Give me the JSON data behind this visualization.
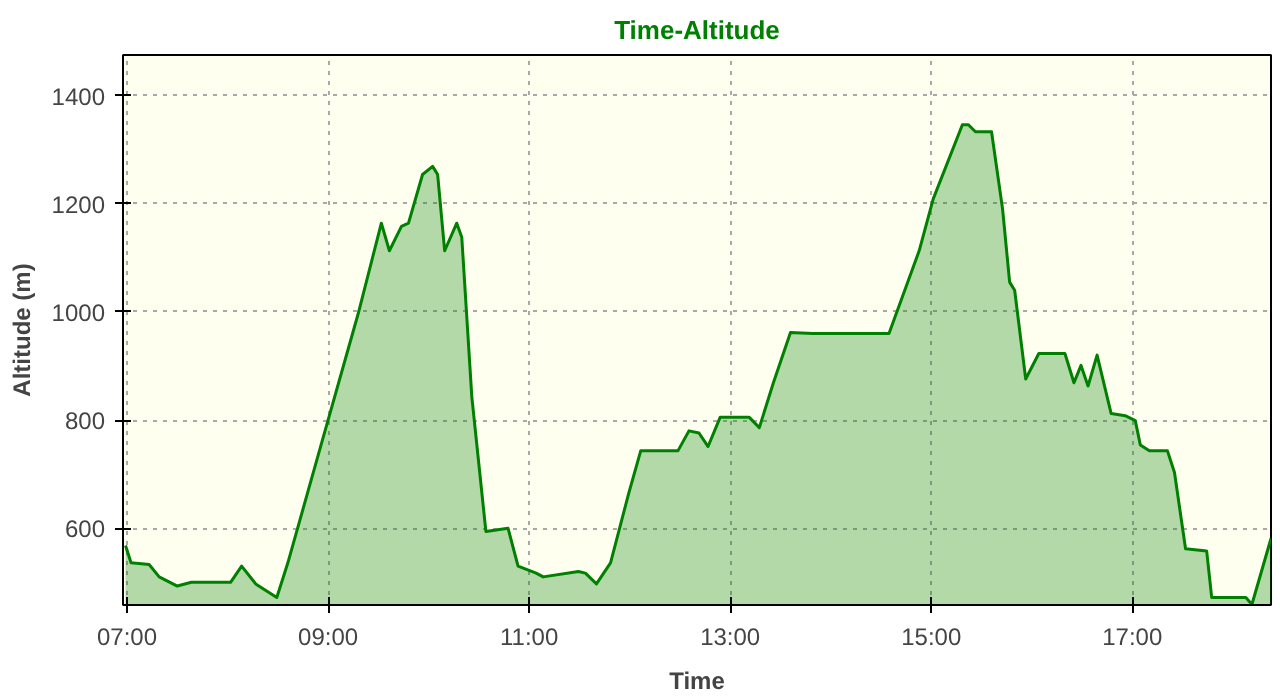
{
  "chart_data": {
    "type": "area",
    "title": "Time-Altitude",
    "xlabel": "Time",
    "ylabel": "Altitude (m)",
    "xlim": [
      6.96,
      18.38
    ],
    "ylim": [
      458,
      1475
    ],
    "xticks": [
      {
        "value": 7,
        "label": "07:00"
      },
      {
        "value": 9,
        "label": "09:00"
      },
      {
        "value": 11,
        "label": "11:00"
      },
      {
        "value": 13,
        "label": "13:00"
      },
      {
        "value": 15,
        "label": "15:00"
      },
      {
        "value": 17,
        "label": "17:00"
      }
    ],
    "yticks": [
      600,
      800,
      1000,
      1200,
      1400
    ],
    "grid": true,
    "series": [
      {
        "color": "#008000",
        "x": [
          6.985,
          7.04,
          7.22,
          7.32,
          7.5,
          7.64,
          8.03,
          8.14,
          8.28,
          8.49,
          8.6,
          8.95,
          9.3,
          9.53,
          9.61,
          9.73,
          9.8,
          9.94,
          10.04,
          10.09,
          10.16,
          10.28,
          10.33,
          10.43,
          10.57,
          10.79,
          10.89,
          11.07,
          11.14,
          11.49,
          11.56,
          11.67,
          11.81,
          11.99,
          12.11,
          12.48,
          12.59,
          12.69,
          12.78,
          12.9,
          13.19,
          13.29,
          13.43,
          13.6,
          13.82,
          14.58,
          14.88,
          15.02,
          15.31,
          15.37,
          15.44,
          15.6,
          15.71,
          15.78,
          15.83,
          15.94,
          16.07,
          16.33,
          16.42,
          16.49,
          16.56,
          16.65,
          16.79,
          16.93,
          17.03,
          17.08,
          17.17,
          17.35,
          17.42,
          17.53,
          17.74,
          17.79,
          18.13,
          18.19,
          18.38
        ],
        "values": [
          568,
          536,
          533,
          510,
          493,
          500,
          500,
          530,
          497,
          472,
          536,
          767,
          997,
          1164,
          1113,
          1158,
          1164,
          1254,
          1269,
          1254,
          1113,
          1164,
          1138,
          843,
          594,
          600,
          530,
          517,
          510,
          520,
          517,
          497,
          536,
          664,
          743,
          743,
          780,
          776,
          751,
          805,
          805,
          786,
          869,
          962,
          960,
          960,
          1113,
          1209,
          1346,
          1346,
          1333,
          1333,
          1190,
          1055,
          1040,
          876,
          923,
          923,
          869,
          901,
          863,
          920,
          812,
          808,
          799,
          754,
          743,
          743,
          703,
          562,
          558,
          472,
          472,
          459,
          581
        ]
      }
    ]
  }
}
